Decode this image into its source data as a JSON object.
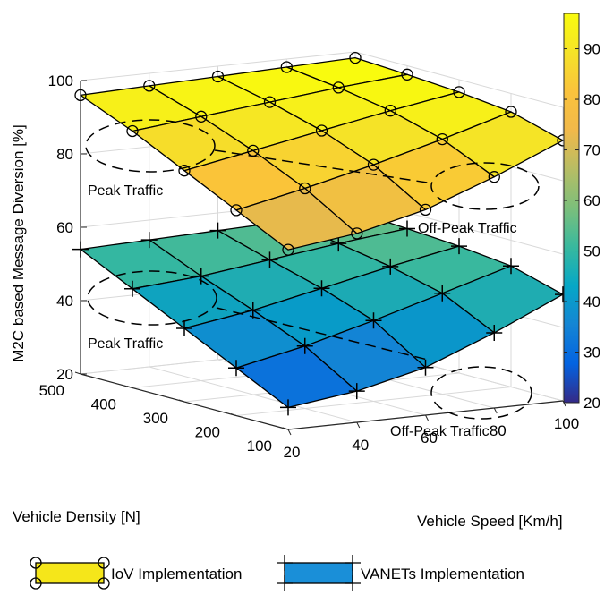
{
  "chart_data": {
    "type": "surface3d",
    "zlabel": "M2C based Message Diversion [%]",
    "xlabel": "Vehicle Speed [Km/h]",
    "ylabel": "Vehicle Density [N]",
    "x": [
      20,
      40,
      60,
      80,
      100
    ],
    "y": [
      100,
      200,
      300,
      400,
      500
    ],
    "xticks": [
      "20",
      "40",
      "60",
      "80",
      "100"
    ],
    "yticks": [
      "100",
      "200",
      "300",
      "400",
      "500"
    ],
    "zticks": [
      "20",
      "40",
      "60",
      "80",
      "100"
    ],
    "zlim": [
      20,
      100
    ],
    "grid": true,
    "series": [
      {
        "name": "IoV Implementation",
        "marker": "circle",
        "note": "rows = density 500,400,300,200,100; cols = speed 20..100",
        "values": [
          [
            96,
            96.6,
            97.2,
            97.8,
            98.4
          ],
          [
            90,
            92,
            94,
            96,
            97.6
          ],
          [
            83,
            86.5,
            90,
            93.5,
            96.6
          ],
          [
            76,
            80,
            84.5,
            89.5,
            95
          ],
          [
            69,
            71.5,
            76,
            83,
            91
          ]
        ]
      },
      {
        "name": "VANETs Implementation",
        "marker": "plus",
        "values": [
          [
            54,
            54.6,
            55.2,
            55.8,
            56.4
          ],
          [
            47,
            48.5,
            51,
            53.5,
            55.6
          ],
          [
            40,
            43,
            47,
            51,
            54.6
          ],
          [
            33,
            37,
            42,
            47.5,
            53
          ],
          [
            26,
            28.5,
            33,
            40.5,
            49
          ]
        ]
      }
    ],
    "colorbar": {
      "ticks": [
        "20",
        "30",
        "40",
        "50",
        "60",
        "70",
        "80",
        "90"
      ],
      "range": [
        20,
        97
      ],
      "colormap": "parula"
    },
    "annotations": [
      {
        "text": "Peak Traffic",
        "surface": "IoV Implementation"
      },
      {
        "text": "Off-Peak Traffic",
        "surface": "IoV Implementation"
      },
      {
        "text": "Peak Traffic",
        "surface": "VANETs Implementation"
      },
      {
        "text": "Off-Peak Traffic",
        "surface": "VANETs Implementation"
      }
    ],
    "legend": {
      "position": "bottom",
      "entries": [
        "IoV Implementation",
        "VANETs Implementation"
      ]
    }
  }
}
